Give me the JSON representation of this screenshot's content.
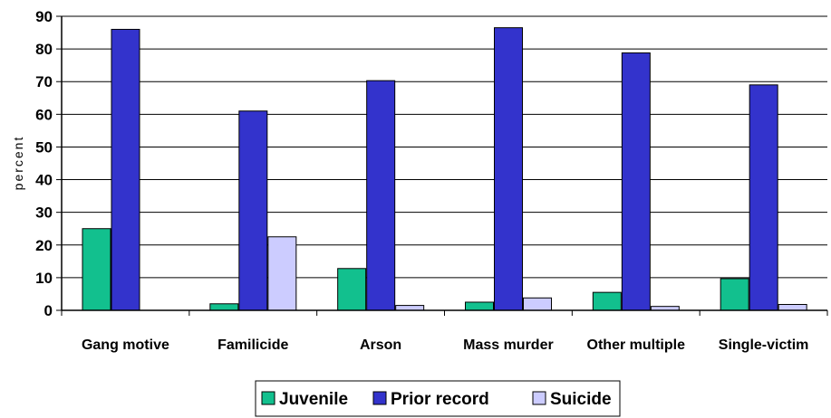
{
  "chart_data": {
    "type": "bar",
    "title": "",
    "xlabel": "",
    "ylabel": "percent",
    "ylim": [
      0,
      90
    ],
    "yticks": [
      0,
      10,
      20,
      30,
      40,
      50,
      60,
      70,
      80,
      90
    ],
    "grid": true,
    "legend_position": "bottom",
    "categories": [
      "Gang motive",
      "Familicide",
      "Arson",
      "Mass murder",
      "Other multiple",
      "Single-victim"
    ],
    "series": [
      {
        "name": "Juvenile",
        "color": "#12c08e",
        "values": [
          25,
          2,
          12.8,
          2.5,
          5.5,
          9.7
        ]
      },
      {
        "name": "Prior record",
        "color": "#3333cc",
        "values": [
          86,
          61,
          70.3,
          86.5,
          78.8,
          69
        ]
      },
      {
        "name": "Suicide",
        "color": "#ccccff",
        "values": [
          0,
          22.5,
          1.5,
          3.8,
          1.2,
          1.8
        ]
      }
    ]
  }
}
